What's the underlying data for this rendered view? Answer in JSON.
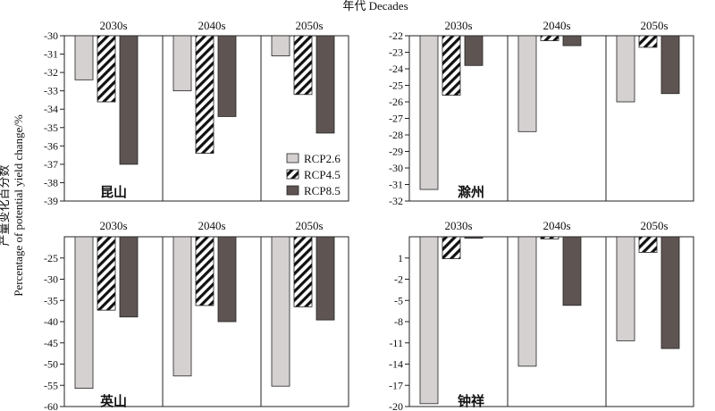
{
  "figure": {
    "top_label": "年代 Decades",
    "y_axis_label_cn": "产量变化百分数",
    "y_axis_label_en": "Percentage of potential yield change/%"
  },
  "legend": {
    "items": [
      {
        "label": "RCP2.6",
        "key": "rcp26"
      },
      {
        "label": "RCP4.5",
        "key": "rcp45"
      },
      {
        "label": "RCP8.5",
        "key": "rcp85"
      }
    ]
  },
  "colors": {
    "rcp26": "#d6d1d1",
    "rcp45_hatch": "#111111",
    "rcp85": "#5e5553",
    "axis": "#222222"
  },
  "chart_data": [
    {
      "type": "bar",
      "panel_label": "昆山",
      "categories": [
        "2030s",
        "2040s",
        "2050s"
      ],
      "series": [
        {
          "name": "RCP2.6",
          "values": [
            -32.4,
            -33.0,
            -31.1
          ]
        },
        {
          "name": "RCP4.5",
          "values": [
            -33.6,
            -36.4,
            -33.2
          ]
        },
        {
          "name": "RCP8.5",
          "values": [
            -37.0,
            -34.4,
            -35.3
          ]
        }
      ],
      "ylim": [
        -39,
        -30
      ],
      "yticks": [
        -30,
        -31,
        -32,
        -33,
        -34,
        -35,
        -36,
        -37,
        -38,
        -39
      ],
      "ytick_labels": [
        "-30",
        "-31",
        "-32",
        "-33",
        "-34",
        "-35",
        "-36",
        "-37",
        "-38",
        "-39"
      ]
    },
    {
      "type": "bar",
      "panel_label": "滁州",
      "categories": [
        "2030s",
        "2040s",
        "2050s"
      ],
      "series": [
        {
          "name": "RCP2.6",
          "values": [
            -31.3,
            -27.8,
            -26.0
          ]
        },
        {
          "name": "RCP4.5",
          "values": [
            -25.6,
            -22.3,
            -22.7
          ]
        },
        {
          "name": "RCP8.5",
          "values": [
            -23.8,
            -22.6,
            -25.5
          ]
        }
      ],
      "ylim": [
        -32,
        -22
      ],
      "yticks": [
        -22,
        -23,
        -24,
        -25,
        -26,
        -27,
        -28,
        -29,
        -30,
        -31,
        -32
      ],
      "ytick_labels": [
        "-22",
        "-23",
        "-24",
        "-25",
        "-26",
        "-27",
        "-28",
        "-29",
        "-30",
        "-31",
        "-32"
      ]
    },
    {
      "type": "bar",
      "panel_label": "英山",
      "categories": [
        "2030s",
        "2040s",
        "2050s"
      ],
      "series": [
        {
          "name": "RCP2.6",
          "values": [
            -55.7,
            -52.8,
            -55.2
          ]
        },
        {
          "name": "RCP4.5",
          "values": [
            -37.3,
            -36.2,
            -36.5
          ]
        },
        {
          "name": "RCP8.5",
          "values": [
            -38.9,
            -40.0,
            -39.6
          ]
        }
      ],
      "ylim": [
        -60,
        -20
      ],
      "yticks": [
        -25,
        -30,
        -35,
        -40,
        -45,
        -50,
        -55,
        -60
      ],
      "ytick_labels": [
        "-25",
        "-30",
        "-35",
        "-40",
        "-45",
        "-50",
        "-55",
        "-60"
      ]
    },
    {
      "type": "bar",
      "panel_label": "钟祥",
      "categories": [
        "2030s",
        "2040s",
        "2050s"
      ],
      "series": [
        {
          "name": "RCP2.6",
          "values": [
            -19.6,
            -14.3,
            -10.7
          ]
        },
        {
          "name": "RCP4.5",
          "values": [
            0.9,
            3.7,
            1.8
          ]
        },
        {
          "name": "RCP8.5",
          "values": [
            3.8,
            -5.7,
            -11.8
          ]
        }
      ],
      "ylim": [
        -20,
        4
      ],
      "yticks": [
        1,
        -2,
        -5,
        -8,
        -11,
        -14,
        -17,
        -20
      ],
      "ytick_labels": [
        "1",
        "-2",
        "-5",
        "-8",
        "-11",
        "-14",
        "-17",
        "-20"
      ]
    }
  ]
}
